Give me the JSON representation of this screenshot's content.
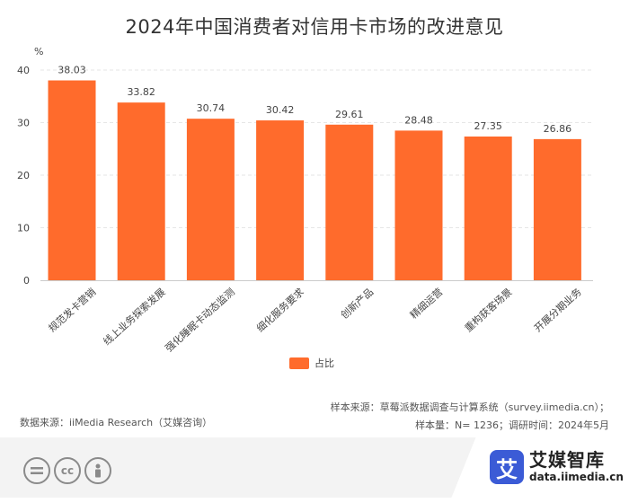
{
  "chart_data": {
    "type": "bar",
    "title": "2024年中国消费者对信用卡市场的改进意见",
    "ylabel": "%",
    "xlabel": "",
    "ylim": [
      0,
      40
    ],
    "yticks": [
      0,
      10,
      20,
      30,
      40
    ],
    "grid": true,
    "legend": "bottom-center",
    "categories": [
      "规范发卡营销",
      "线上业务探索发展",
      "强化睡眠卡动态监测",
      "细化服务要求",
      "创新产品",
      "精细运营",
      "重构获客场景",
      "开展分期业务"
    ],
    "series": [
      {
        "name": "占比",
        "values": [
          38.03,
          33.82,
          30.74,
          30.42,
          29.61,
          28.48,
          27.35,
          26.86
        ]
      }
    ],
    "colors": {
      "bar": "#ff6b2c",
      "grid": "#e6e6e6",
      "axis": "#cccccc"
    }
  },
  "footer": {
    "source_line1": "样本来源：草莓派数据调查与计算系统（survey.iimedia.cn）；",
    "source_line2": "样本量：N= 1236；调研时间：2024年5月",
    "data_source": "数据来源：iiMedia Research（艾媒咨询）"
  },
  "license": {
    "icons": [
      "equals-icon",
      "cc-icon",
      "person-icon"
    ],
    "cc_text": "cc"
  },
  "brand": {
    "logo_char": "艾",
    "name": "艾媒智库",
    "url": "data.iimedia.cn",
    "color": "#3b5bd6"
  }
}
